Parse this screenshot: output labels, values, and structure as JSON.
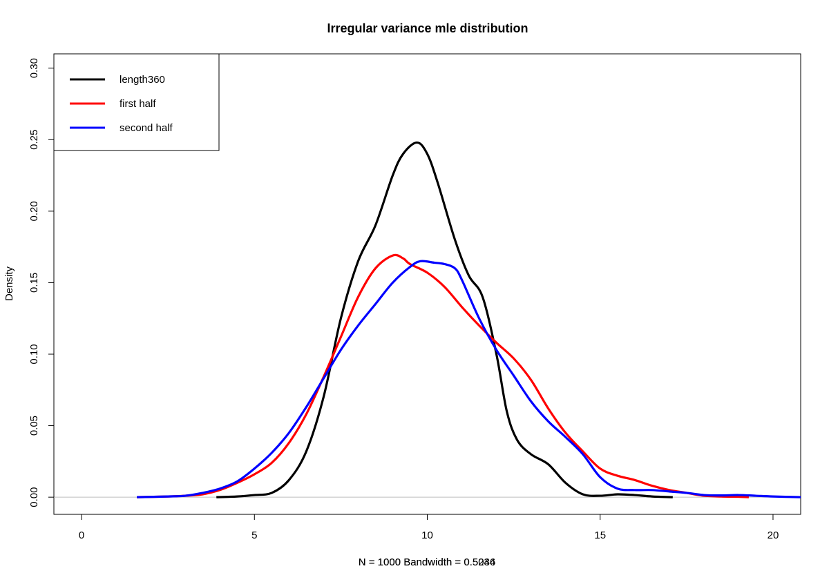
{
  "chart_data": {
    "type": "line",
    "title": "Irregular variance mle distribution",
    "xlabel": "",
    "ylabel": "Density",
    "sub_labels": [
      "N = 1000   Bandwidth = 0.5244",
      "N = 1000   Bandwidth = 0.5036"
    ],
    "xlim": [
      -0.8,
      20.8
    ],
    "ylim": [
      -0.012,
      0.31
    ],
    "x_ticks": [
      0,
      5,
      10,
      15,
      20
    ],
    "x_tick_labels": [
      "0",
      "5",
      "10",
      "15",
      "20"
    ],
    "y_ticks": [
      0.0,
      0.05,
      0.1,
      0.15,
      0.2,
      0.25,
      0.3
    ],
    "y_tick_labels": [
      "0.00",
      "0.05",
      "0.10",
      "0.15",
      "0.20",
      "0.25",
      "0.30"
    ],
    "zero_line": true,
    "grid": false,
    "legend_position": "top-left",
    "series": [
      {
        "name": "length360",
        "color": "#000000",
        "x": [
          3.9,
          4.5,
          5.0,
          5.5,
          6.0,
          6.5,
          7.0,
          7.5,
          8.0,
          8.5,
          9.0,
          9.3,
          9.7,
          10.0,
          10.3,
          10.8,
          11.2,
          11.6,
          12.0,
          12.3,
          12.6,
          13.0,
          13.5,
          14.0,
          14.5,
          15.0,
          15.5,
          16.0,
          16.5,
          17.1
        ],
        "values": [
          0.0,
          0.0005,
          0.0015,
          0.003,
          0.012,
          0.032,
          0.07,
          0.125,
          0.165,
          0.19,
          0.225,
          0.24,
          0.248,
          0.24,
          0.22,
          0.18,
          0.155,
          0.14,
          0.1,
          0.06,
          0.04,
          0.03,
          0.023,
          0.01,
          0.002,
          0.001,
          0.002,
          0.0015,
          0.0005,
          0.0
        ]
      },
      {
        "name": "first half",
        "color": "#ff0000",
        "x": [
          1.6,
          2.5,
          3.0,
          3.5,
          4.0,
          4.5,
          5.0,
          5.5,
          6.0,
          6.5,
          7.0,
          7.5,
          8.0,
          8.5,
          9.0,
          9.3,
          9.5,
          10.0,
          10.5,
          11.0,
          11.5,
          12.0,
          12.5,
          13.0,
          13.5,
          14.0,
          14.5,
          15.0,
          15.5,
          16.0,
          16.5,
          17.0,
          17.5,
          18.0,
          18.5,
          19.0,
          19.3
        ],
        "values": [
          0.0,
          0.0005,
          0.001,
          0.002,
          0.005,
          0.01,
          0.016,
          0.024,
          0.038,
          0.058,
          0.084,
          0.112,
          0.14,
          0.16,
          0.169,
          0.167,
          0.163,
          0.157,
          0.147,
          0.133,
          0.12,
          0.108,
          0.097,
          0.082,
          0.062,
          0.045,
          0.032,
          0.02,
          0.015,
          0.012,
          0.008,
          0.005,
          0.003,
          0.001,
          0.0005,
          0.0003,
          0.0
        ]
      },
      {
        "name": "second half",
        "color": "#0000ff",
        "x": [
          1.6,
          2.5,
          3.0,
          3.5,
          4.0,
          4.5,
          5.0,
          5.5,
          6.0,
          6.5,
          7.0,
          7.5,
          8.0,
          8.5,
          9.0,
          9.5,
          9.8,
          10.2,
          10.5,
          10.8,
          11.0,
          11.5,
          12.0,
          12.5,
          13.0,
          13.5,
          14.0,
          14.5,
          15.0,
          15.5,
          16.0,
          16.5,
          17.0,
          17.5,
          18.0,
          18.5,
          19.0,
          19.5,
          20.0,
          20.8
        ],
        "values": [
          0.0,
          0.0005,
          0.001,
          0.003,
          0.006,
          0.011,
          0.02,
          0.031,
          0.045,
          0.063,
          0.083,
          0.103,
          0.12,
          0.135,
          0.15,
          0.161,
          0.165,
          0.164,
          0.163,
          0.16,
          0.152,
          0.125,
          0.103,
          0.085,
          0.067,
          0.053,
          0.042,
          0.03,
          0.014,
          0.006,
          0.005,
          0.005,
          0.004,
          0.003,
          0.0015,
          0.0012,
          0.0015,
          0.001,
          0.0005,
          0.0
        ]
      }
    ]
  }
}
